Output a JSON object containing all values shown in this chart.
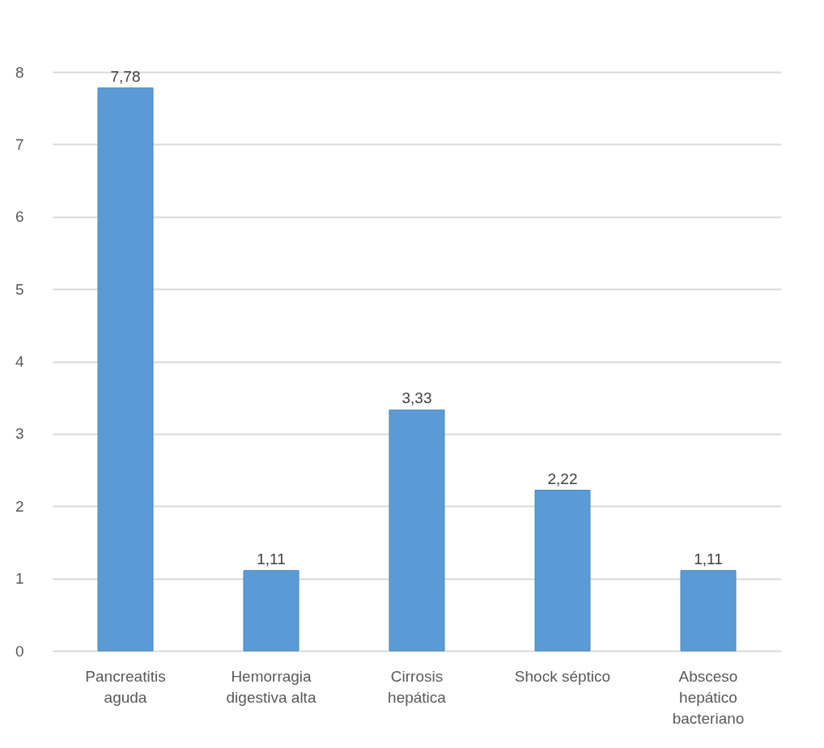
{
  "chart_data": {
    "type": "bar",
    "categories": [
      "Pancreatitis\naguda",
      "Hemorragia\ndigestiva alta",
      "Cirrosis\nhepática",
      "Shock séptico",
      "Absceso\nhepático\nbacteriano"
    ],
    "values": [
      7.78,
      1.11,
      3.33,
      2.22,
      1.11
    ],
    "value_labels": [
      "7,78",
      "1,11",
      "3,33",
      "2,22",
      "1,11"
    ],
    "color": "#5b9bd5",
    "ylim": [
      0,
      8
    ],
    "yticks": [
      0,
      1,
      2,
      3,
      4,
      5,
      6,
      7,
      8
    ],
    "grid": "y"
  }
}
